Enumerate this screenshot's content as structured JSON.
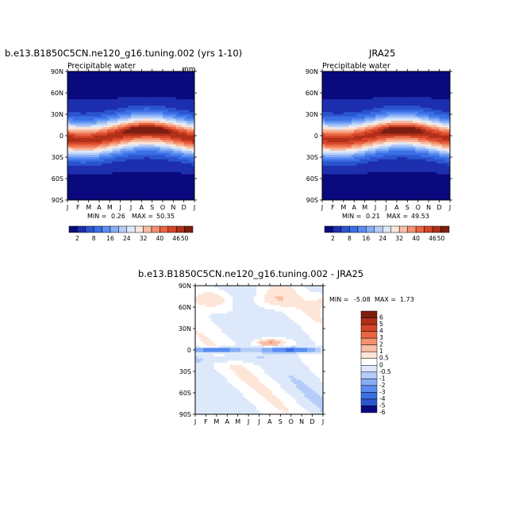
{
  "chart_data": [
    {
      "type": "heatmap",
      "title": "b.e13.B1850C5CN.ne120_g16.tuning.002 (yrs 1-10)",
      "subtitle": "Precipitable water",
      "units": "mm",
      "x_ticks": [
        "J",
        "F",
        "M",
        "A",
        "M",
        "J",
        "J",
        "A",
        "S",
        "O",
        "N",
        "D",
        "J"
      ],
      "y_ticks": [
        "90N",
        "60N",
        "30N",
        "0",
        "30S",
        "60S",
        "90S"
      ],
      "min_label": "MIN =",
      "min_value": "0.26",
      "max_label": "MAX =",
      "max_value": "50.35",
      "colorbar_labels": [
        "2",
        "8",
        "16",
        "24",
        "32",
        "40",
        "46",
        "50"
      ],
      "peak": 50.35,
      "peak_month": 7.5,
      "shift": 10
    },
    {
      "type": "heatmap",
      "title": "JRA25",
      "subtitle": "Precipitable water",
      "units": "",
      "x_ticks": [
        "J",
        "F",
        "M",
        "A",
        "M",
        "J",
        "J",
        "A",
        "S",
        "O",
        "N",
        "D",
        "J"
      ],
      "y_ticks": [
        "90N",
        "60N",
        "30N",
        "0",
        "30S",
        "60S",
        "90S"
      ],
      "min_label": "MIN =",
      "min_value": "0.21",
      "max_label": "MAX =",
      "max_value": "49.53",
      "colorbar_labels": [
        "2",
        "8",
        "16",
        "24",
        "32",
        "40",
        "46",
        "50"
      ],
      "peak": 49.53,
      "peak_month": 7.5,
      "shift": 9
    },
    {
      "type": "heatmap",
      "title": "b.e13.B1850C5CN.ne120_g16.tuning.002 - JRA25",
      "x_ticks": [
        "J",
        "F",
        "M",
        "A",
        "M",
        "J",
        "J",
        "A",
        "S",
        "O",
        "N",
        "D",
        "J"
      ],
      "y_ticks": [
        "90N",
        "60N",
        "30N",
        "0",
        "30S",
        "60S",
        "90S"
      ],
      "min_label": "MIN =",
      "min_value": "-5.08",
      "max_label": "MAX =",
      "max_value": "1.73",
      "colorbar_labels": [
        "6",
        "5",
        "4",
        "3",
        "2",
        "1",
        "0.5",
        "0",
        "-0.5",
        "-1",
        "-2",
        "-3",
        "-4",
        "-5",
        "-6"
      ]
    }
  ],
  "colors": {
    "pw_scale": [
      "#0a0a7e",
      "#1d2fae",
      "#2b55cf",
      "#3b6fe6",
      "#5a8df0",
      "#86aef5",
      "#b4cdf8",
      "#dde9fb",
      "#fde5d8",
      "#f8bda5",
      "#f39170",
      "#ea6540",
      "#d6452a",
      "#b03018",
      "#7d1e10"
    ],
    "diff_scale": [
      "#7d1e10",
      "#b03018",
      "#d6452a",
      "#ea6540",
      "#f39170",
      "#f8bda5",
      "#fde5d8",
      "#ffffff",
      "#dde9fb",
      "#b4cdf8",
      "#86aef5",
      "#5a8df0",
      "#3b6fe6",
      "#2b55cf",
      "#0a0a7e"
    ],
    "diff_background": "#dbe7f8"
  }
}
